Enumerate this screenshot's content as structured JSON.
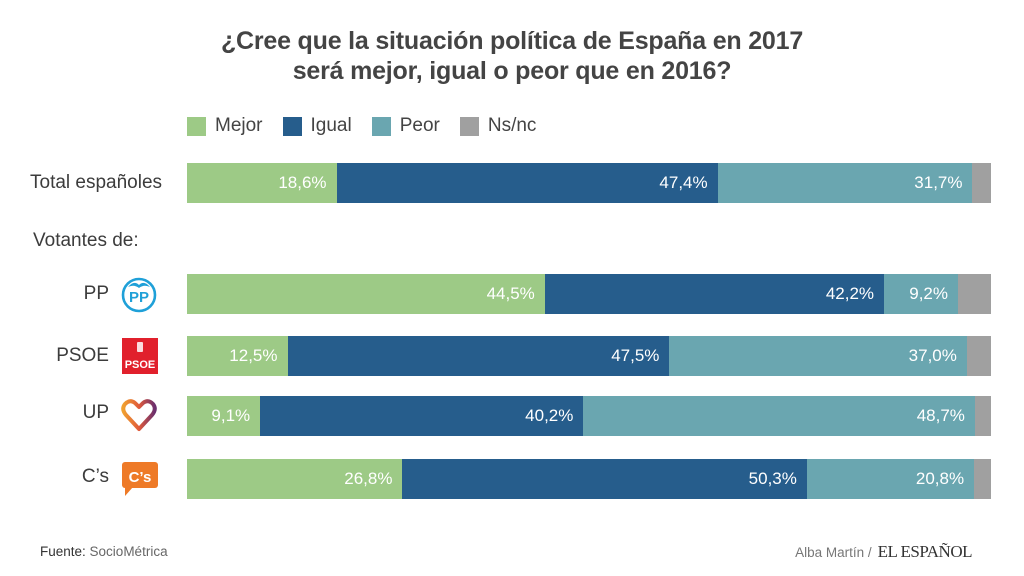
{
  "chart_data": {
    "type": "bar",
    "orientation": "horizontal",
    "stacked": true,
    "title": "¿Cree que la situación política de España en 2017 será mejor, igual o peor que en 2016?",
    "title_lines": [
      "¿Cree que la situación política de España en 2017",
      "será mejor, igual o peor que en 2016?"
    ],
    "legend_position": "top-left",
    "xlim": [
      0,
      100
    ],
    "unit": "%",
    "series": [
      {
        "name": "Mejor",
        "color": "#9dca86",
        "values": [
          18.6,
          44.5,
          12.5,
          9.1,
          26.8
        ],
        "labels": [
          "18,6%",
          "44,5%",
          "12,5%",
          "9,1%",
          "26,8%"
        ]
      },
      {
        "name": "Igual",
        "color": "#265d8c",
        "values": [
          47.4,
          42.2,
          47.5,
          40.2,
          50.3
        ],
        "labels": [
          "47,4%",
          "42,2%",
          "47,5%",
          "40,2%",
          "50,3%"
        ]
      },
      {
        "name": "Peor",
        "color": "#6aa6b0",
        "values": [
          31.7,
          9.2,
          37.0,
          48.7,
          20.8
        ],
        "labels": [
          "31,7%",
          "9,2%",
          "37,0%",
          "48,7%",
          "20,8%"
        ]
      },
      {
        "name": "Ns/nc",
        "color": "#a0a0a0",
        "values": [
          2.3,
          4.1,
          3.0,
          2.0,
          2.1
        ],
        "labels": [
          "",
          "",
          "",
          "",
          ""
        ]
      }
    ],
    "categories": [
      "Total españoles",
      "PP",
      "PSOE",
      "UP",
      "C's"
    ],
    "group_label": "Votantes de:"
  },
  "category_display": [
    "Total españoles",
    "PP",
    "PSOE",
    "UP",
    "C’s"
  ],
  "logos": {
    "pp": {
      "icon": "pp-logo-icon",
      "text": "PP",
      "color": "#1fa0d8"
    },
    "psoe": {
      "icon": "psoe-logo-icon",
      "text": "PSOE",
      "color": "#e1202c"
    },
    "up": {
      "icon": "up-heart-logo-icon",
      "colors": [
        "#f0a030",
        "#6b2f6e"
      ]
    },
    "cs": {
      "icon": "cs-logo-icon",
      "text": "C's",
      "color": "#ee7a27"
    }
  },
  "footer": {
    "source_label": "Fuente:",
    "source_value": "SocioMétrica",
    "author": "Alba Martín /",
    "brand": "EL ESPAÑOL"
  }
}
